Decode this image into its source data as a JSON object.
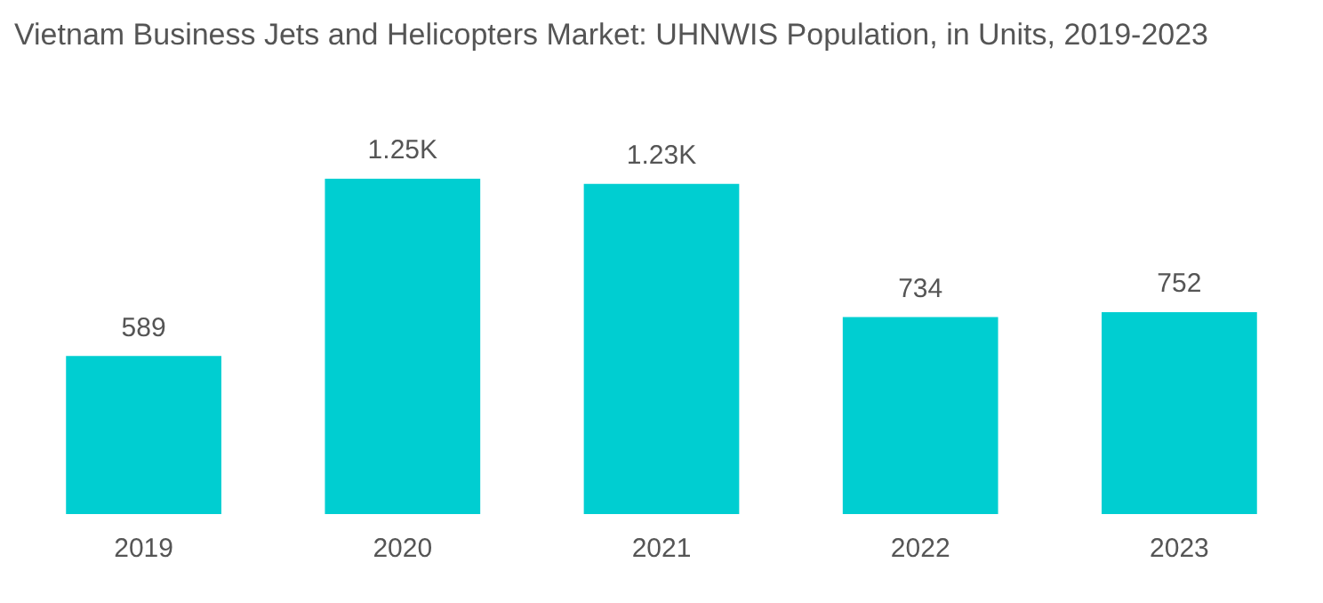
{
  "chart_data": {
    "type": "bar",
    "title": "Vietnam Business Jets and Helicopters Market: UHNWIS Population, in Units, 2019-2023",
    "categories": [
      "2019",
      "2020",
      "2021",
      "2022",
      "2023"
    ],
    "values": [
      589,
      1250,
      1230,
      734,
      752
    ],
    "value_labels": [
      "589",
      "1.25K",
      "1.23K",
      "734",
      "752"
    ],
    "color": "#00ced1",
    "grid": false,
    "legend": false,
    "tick_labels": "x"
  }
}
